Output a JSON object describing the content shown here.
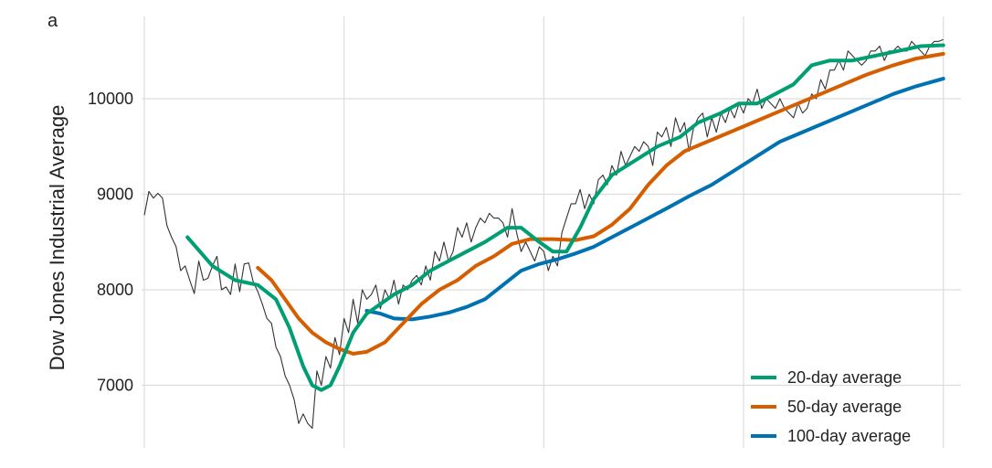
{
  "panel_label": "a",
  "chart_data": {
    "type": "line",
    "title": "",
    "xlabel": "",
    "ylabel": "Dow Jones Industrial Average",
    "ylim": [
      6500,
      10700
    ],
    "yticks": [
      7000,
      8000,
      9000,
      10000
    ],
    "x_range": [
      0,
      402
    ],
    "grid": true,
    "legend_position": "bottom-right",
    "colors": {
      "price": "#333333",
      "avg20": "#009E73",
      "avg50": "#D55E00",
      "avg100": "#0072B2",
      "grid": "#dddddd"
    },
    "price_points": [
      [
        0,
        8780
      ],
      [
        2,
        9030
      ],
      [
        4,
        8960
      ],
      [
        6,
        9010
      ],
      [
        8,
        8960
      ],
      [
        10,
        8670
      ],
      [
        12,
        8550
      ],
      [
        14,
        8450
      ],
      [
        16,
        8200
      ],
      [
        18,
        8250
      ],
      [
        20,
        8100
      ],
      [
        22,
        7960
      ],
      [
        24,
        8300
      ],
      [
        26,
        8100
      ],
      [
        28,
        8120
      ],
      [
        30,
        8250
      ],
      [
        32,
        8350
      ],
      [
        34,
        8000
      ],
      [
        36,
        8030
      ],
      [
        38,
        7950
      ],
      [
        40,
        8270
      ],
      [
        42,
        7980
      ],
      [
        44,
        8270
      ],
      [
        46,
        8280
      ],
      [
        48,
        8080
      ],
      [
        50,
        7980
      ],
      [
        52,
        7850
      ],
      [
        54,
        7700
      ],
      [
        56,
        7650
      ],
      [
        58,
        7400
      ],
      [
        60,
        7300
      ],
      [
        62,
        7100
      ],
      [
        64,
        7000
      ],
      [
        66,
        6850
      ],
      [
        68,
        6600
      ],
      [
        70,
        6700
      ],
      [
        72,
        6600
      ],
      [
        74,
        6550
      ],
      [
        76,
        7150
      ],
      [
        78,
        7000
      ],
      [
        80,
        7300
      ],
      [
        82,
        7180
      ],
      [
        84,
        7500
      ],
      [
        86,
        7320
      ],
      [
        88,
        7700
      ],
      [
        90,
        7550
      ],
      [
        92,
        7900
      ],
      [
        94,
        7650
      ],
      [
        96,
        8000
      ],
      [
        98,
        7900
      ],
      [
        100,
        7950
      ],
      [
        102,
        8050
      ],
      [
        104,
        7800
      ],
      [
        106,
        8000
      ],
      [
        108,
        7900
      ],
      [
        110,
        8100
      ],
      [
        112,
        7850
      ],
      [
        114,
        8050
      ],
      [
        116,
        8000
      ],
      [
        118,
        8100
      ],
      [
        120,
        8150
      ],
      [
        122,
        8050
      ],
      [
        124,
        8250
      ],
      [
        126,
        8100
      ],
      [
        128,
        8400
      ],
      [
        130,
        8300
      ],
      [
        132,
        8500
      ],
      [
        134,
        8300
      ],
      [
        136,
        8400
      ],
      [
        138,
        8650
      ],
      [
        140,
        8550
      ],
      [
        142,
        8700
      ],
      [
        144,
        8500
      ],
      [
        146,
        8650
      ],
      [
        148,
        8750
      ],
      [
        150,
        8700
      ],
      [
        152,
        8800
      ],
      [
        154,
        8750
      ],
      [
        156,
        8750
      ],
      [
        158,
        8700
      ],
      [
        160,
        8550
      ],
      [
        162,
        8850
      ],
      [
        164,
        8600
      ],
      [
        166,
        8400
      ],
      [
        168,
        8500
      ],
      [
        170,
        8400
      ],
      [
        172,
        8300
      ],
      [
        174,
        8450
      ],
      [
        176,
        8400
      ],
      [
        178,
        8200
      ],
      [
        180,
        8350
      ],
      [
        182,
        8250
      ],
      [
        184,
        8600
      ],
      [
        186,
        8750
      ],
      [
        188,
        8900
      ],
      [
        190,
        8900
      ],
      [
        192,
        9050
      ],
      [
        194,
        8850
      ],
      [
        196,
        9000
      ],
      [
        198,
        8900
      ],
      [
        200,
        9150
      ],
      [
        202,
        9200
      ],
      [
        204,
        9100
      ],
      [
        206,
        9300
      ],
      [
        208,
        9200
      ],
      [
        210,
        9450
      ],
      [
        212,
        9300
      ],
      [
        214,
        9400
      ],
      [
        216,
        9500
      ],
      [
        218,
        9450
      ],
      [
        220,
        9550
      ],
      [
        222,
        9500
      ],
      [
        224,
        9300
      ],
      [
        226,
        9650
      ],
      [
        228,
        9600
      ],
      [
        230,
        9700
      ],
      [
        232,
        9500
      ],
      [
        234,
        9800
      ],
      [
        236,
        9650
      ],
      [
        238,
        9750
      ],
      [
        240,
        9450
      ],
      [
        242,
        9700
      ],
      [
        244,
        9800
      ],
      [
        246,
        9850
      ],
      [
        248,
        9600
      ],
      [
        250,
        9800
      ],
      [
        252,
        9650
      ],
      [
        254,
        9850
      ],
      [
        256,
        9750
      ],
      [
        258,
        9900
      ],
      [
        260,
        9800
      ],
      [
        262,
        9950
      ],
      [
        264,
        9850
      ],
      [
        266,
        10000
      ],
      [
        268,
        9950
      ],
      [
        270,
        10100
      ],
      [
        272,
        9900
      ],
      [
        274,
        10000
      ],
      [
        276,
        9950
      ],
      [
        278,
        9900
      ],
      [
        280,
        10000
      ],
      [
        282,
        9900
      ],
      [
        284,
        9850
      ],
      [
        286,
        9800
      ],
      [
        288,
        9950
      ],
      [
        290,
        9850
      ],
      [
        292,
        9900
      ],
      [
        294,
        10050
      ],
      [
        296,
        10000
      ],
      [
        298,
        10200
      ],
      [
        300,
        10100
      ],
      [
        302,
        10300
      ],
      [
        304,
        10300
      ],
      [
        306,
        10400
      ],
      [
        308,
        10300
      ],
      [
        310,
        10500
      ],
      [
        312,
        10450
      ],
      [
        314,
        10400
      ],
      [
        316,
        10350
      ],
      [
        318,
        10400
      ],
      [
        320,
        10500
      ],
      [
        322,
        10500
      ],
      [
        324,
        10550
      ],
      [
        326,
        10400
      ],
      [
        328,
        10500
      ],
      [
        330,
        10500
      ],
      [
        332,
        10550
      ],
      [
        334,
        10500
      ],
      [
        336,
        10500
      ],
      [
        338,
        10600
      ],
      [
        340,
        10550
      ],
      [
        342,
        10500
      ],
      [
        344,
        10450
      ],
      [
        346,
        10550
      ],
      [
        348,
        10600
      ],
      [
        350,
        10600
      ],
      [
        352,
        10620
      ]
    ],
    "series": [
      {
        "name": "20-day average",
        "color": "#009E73",
        "points": [
          [
            19,
            8550
          ],
          [
            30,
            8250
          ],
          [
            40,
            8100
          ],
          [
            50,
            8050
          ],
          [
            58,
            7900
          ],
          [
            64,
            7600
          ],
          [
            70,
            7200
          ],
          [
            74,
            7000
          ],
          [
            78,
            6950
          ],
          [
            82,
            7000
          ],
          [
            86,
            7200
          ],
          [
            92,
            7550
          ],
          [
            98,
            7750
          ],
          [
            104,
            7850
          ],
          [
            110,
            7950
          ],
          [
            118,
            8050
          ],
          [
            126,
            8200
          ],
          [
            134,
            8300
          ],
          [
            142,
            8400
          ],
          [
            150,
            8500
          ],
          [
            160,
            8650
          ],
          [
            166,
            8650
          ],
          [
            174,
            8500
          ],
          [
            180,
            8400
          ],
          [
            186,
            8400
          ],
          [
            192,
            8650
          ],
          [
            198,
            8950
          ],
          [
            206,
            9200
          ],
          [
            216,
            9350
          ],
          [
            226,
            9500
          ],
          [
            236,
            9600
          ],
          [
            244,
            9750
          ],
          [
            254,
            9850
          ],
          [
            262,
            9950
          ],
          [
            270,
            9950
          ],
          [
            278,
            10050
          ],
          [
            286,
            10150
          ],
          [
            294,
            10350
          ],
          [
            302,
            10400
          ],
          [
            312,
            10400
          ],
          [
            322,
            10450
          ],
          [
            332,
            10500
          ],
          [
            342,
            10550
          ],
          [
            352,
            10560
          ]
        ]
      },
      {
        "name": "50-day average",
        "color": "#D55E00",
        "points": [
          [
            50,
            8230
          ],
          [
            56,
            8100
          ],
          [
            62,
            7900
          ],
          [
            68,
            7700
          ],
          [
            74,
            7550
          ],
          [
            80,
            7450
          ],
          [
            86,
            7380
          ],
          [
            92,
            7330
          ],
          [
            98,
            7350
          ],
          [
            106,
            7450
          ],
          [
            114,
            7650
          ],
          [
            122,
            7850
          ],
          [
            130,
            8000
          ],
          [
            138,
            8100
          ],
          [
            146,
            8250
          ],
          [
            154,
            8350
          ],
          [
            162,
            8480
          ],
          [
            170,
            8530
          ],
          [
            180,
            8530
          ],
          [
            190,
            8520
          ],
          [
            198,
            8560
          ],
          [
            206,
            8680
          ],
          [
            214,
            8850
          ],
          [
            222,
            9100
          ],
          [
            230,
            9300
          ],
          [
            238,
            9450
          ],
          [
            248,
            9550
          ],
          [
            258,
            9650
          ],
          [
            268,
            9750
          ],
          [
            278,
            9850
          ],
          [
            288,
            9950
          ],
          [
            298,
            10050
          ],
          [
            308,
            10150
          ],
          [
            318,
            10250
          ],
          [
            330,
            10350
          ],
          [
            340,
            10420
          ],
          [
            352,
            10470
          ]
        ]
      },
      {
        "name": "100-day average",
        "color": "#0072B2",
        "points": [
          [
            98,
            7780
          ],
          [
            104,
            7750
          ],
          [
            110,
            7700
          ],
          [
            118,
            7690
          ],
          [
            126,
            7720
          ],
          [
            134,
            7760
          ],
          [
            142,
            7820
          ],
          [
            150,
            7900
          ],
          [
            158,
            8050
          ],
          [
            166,
            8200
          ],
          [
            174,
            8270
          ],
          [
            182,
            8320
          ],
          [
            190,
            8380
          ],
          [
            198,
            8450
          ],
          [
            206,
            8550
          ],
          [
            214,
            8650
          ],
          [
            222,
            8750
          ],
          [
            230,
            8850
          ],
          [
            240,
            8980
          ],
          [
            250,
            9100
          ],
          [
            260,
            9250
          ],
          [
            270,
            9400
          ],
          [
            280,
            9550
          ],
          [
            290,
            9650
          ],
          [
            300,
            9750
          ],
          [
            310,
            9850
          ],
          [
            320,
            9950
          ],
          [
            330,
            10050
          ],
          [
            340,
            10130
          ],
          [
            352,
            10210
          ]
        ]
      }
    ],
    "legend": [
      "20-day average",
      "50-day average",
      "100-day average"
    ]
  }
}
